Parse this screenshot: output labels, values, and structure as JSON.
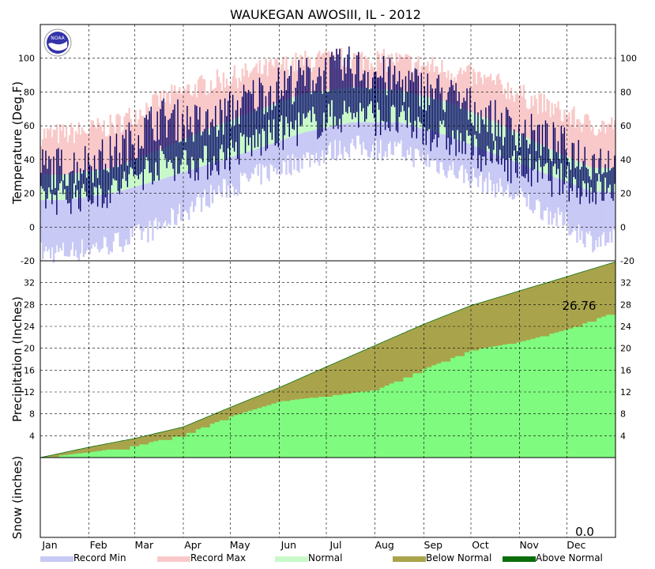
{
  "chart_data": {
    "type": "area",
    "title": "WAUKEGAN  AWOSIII, IL - 2012",
    "months": [
      "Jan",
      "Feb",
      "Mar",
      "Apr",
      "May",
      "Jun",
      "Jul",
      "Aug",
      "Sep",
      "Oct",
      "Nov",
      "Dec"
    ],
    "temperature_panel": {
      "ylabel": "Temperature (Deg.F)",
      "ylim": [
        -20,
        120
      ],
      "ticks": [
        "-20",
        "0",
        "20",
        "40",
        "60",
        "80",
        "100"
      ],
      "normal_high_by_month": [
        31,
        35,
        46,
        58,
        69,
        79,
        83,
        81,
        74,
        62,
        48,
        35
      ],
      "normal_low_by_month": [
        16,
        20,
        28,
        37,
        46,
        56,
        62,
        62,
        54,
        43,
        32,
        21
      ],
      "record_high_by_month": [
        55,
        60,
        75,
        85,
        92,
        98,
        100,
        98,
        93,
        85,
        72,
        60
      ],
      "record_low_by_month": [
        -15,
        -10,
        0,
        18,
        30,
        40,
        48,
        45,
        35,
        24,
        10,
        -8
      ],
      "observed_high_by_month": [
        35,
        42,
        65,
        60,
        78,
        88,
        95,
        86,
        78,
        62,
        52,
        40
      ],
      "observed_low_by_month": [
        18,
        22,
        38,
        38,
        50,
        60,
        68,
        62,
        52,
        40,
        30,
        22
      ]
    },
    "precip_panel": {
      "ylabel": "Precipitation (Inches)",
      "ylim": [
        0,
        36
      ],
      "ticks": [
        "4",
        "8",
        "12",
        "16",
        "20",
        "24",
        "28",
        "32"
      ],
      "normal_cumulative_month_end": [
        1.9,
        3.5,
        5.6,
        9.2,
        12.8,
        16.6,
        20.5,
        24.4,
        27.8,
        30.5,
        33.1,
        35.8
      ],
      "observed_cumulative_month_end": [
        1.0,
        2.2,
        4.3,
        7.6,
        10.3,
        11.3,
        12.4,
        16.3,
        19.7,
        21.2,
        23.5,
        26.76
      ],
      "total_label": "26.76"
    },
    "snow_panel": {
      "ylabel": "Snow (inches)",
      "total_label": "0.0"
    },
    "legend": [
      {
        "label": "Record Min",
        "color": "#c9c9f5"
      },
      {
        "label": "Record Max",
        "color": "#f9c9c9"
      },
      {
        "label": "Normal",
        "color": "#c9f9c9"
      },
      {
        "label": "Below Normal",
        "color": "#a9a44c"
      },
      {
        "label": "Above Normal",
        "color": "#0b6e0b"
      }
    ],
    "colors": {
      "observed_temp": "#000066",
      "observed_precip": "#7ffb7f",
      "logo": "#3333aa"
    },
    "grid": true
  }
}
